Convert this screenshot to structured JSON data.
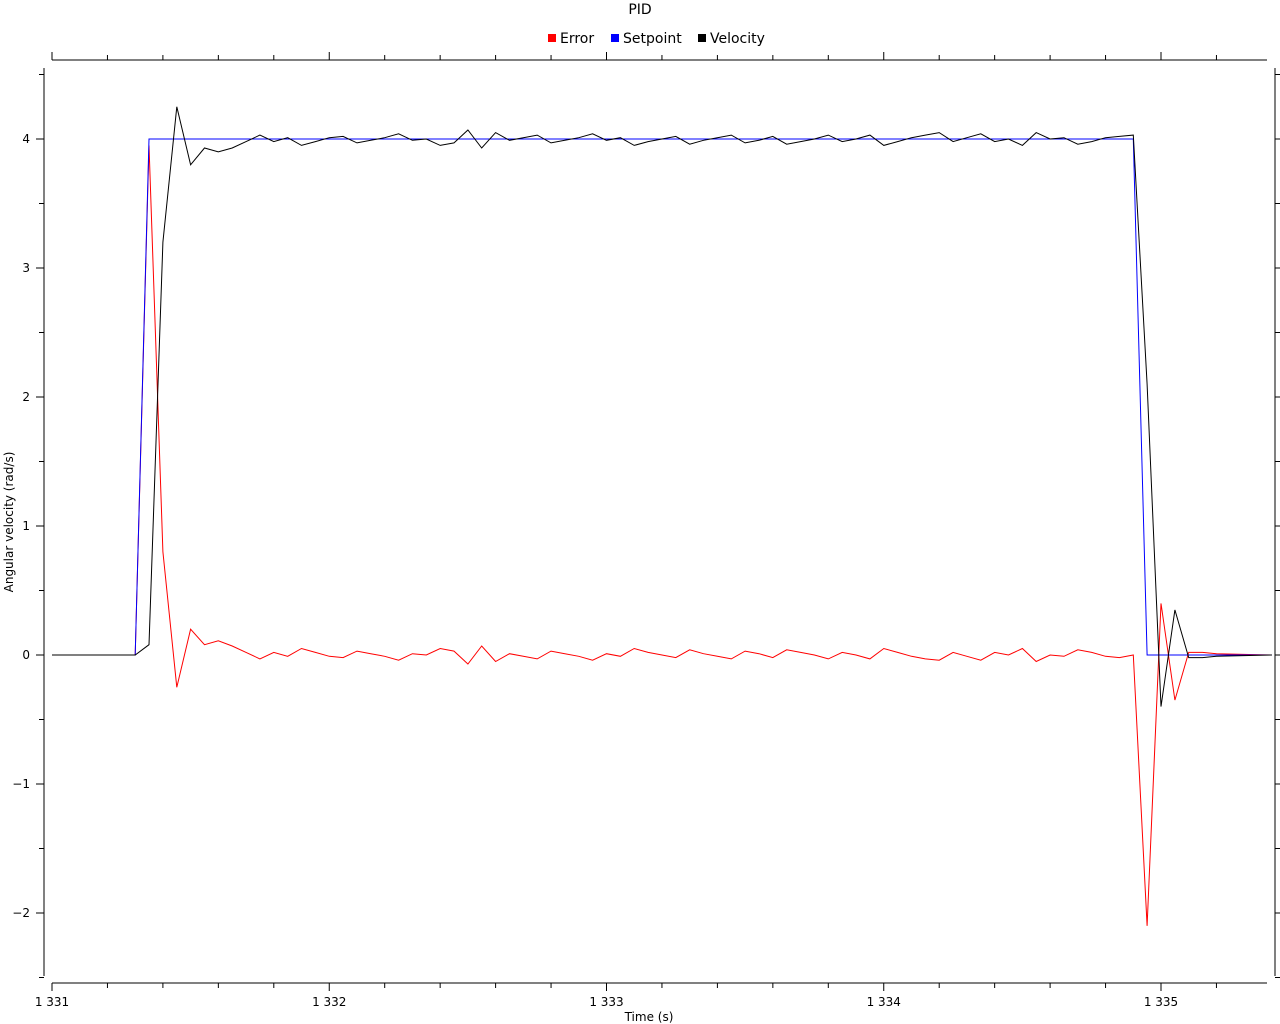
{
  "chart_data": {
    "type": "line",
    "title": "PID",
    "xlabel": "Time (s)",
    "ylabel": "Angular velocity (rad/s)",
    "xlim": [
      1331.0,
      1335.4
    ],
    "ylim": [
      -2.5,
      4.5
    ],
    "grid": false,
    "legend_position": "top-center",
    "x_ticks": [
      1331,
      1332,
      1333,
      1334,
      1335
    ],
    "x_tick_labels": [
      "1 331",
      "1 332",
      "1 333",
      "1 334",
      "1 335"
    ],
    "y_ticks": [
      -2,
      -1,
      0,
      1,
      2,
      3,
      4
    ],
    "y_tick_labels": [
      "−2",
      "−1",
      "0",
      "1",
      "2",
      "3",
      "4"
    ],
    "series": [
      {
        "name": "Error",
        "color": "#ff0000",
        "x": [
          1331.0,
          1331.3,
          1331.35,
          1331.4,
          1331.45,
          1331.5,
          1331.55,
          1331.6,
          1331.65,
          1331.7,
          1331.75,
          1331.8,
          1331.85,
          1331.9,
          1331.95,
          1332.0,
          1332.05,
          1332.1,
          1332.15,
          1332.2,
          1332.25,
          1332.3,
          1332.35,
          1332.4,
          1332.45,
          1332.5,
          1332.55,
          1332.6,
          1332.65,
          1332.7,
          1332.75,
          1332.8,
          1332.85,
          1332.9,
          1332.95,
          1333.0,
          1333.05,
          1333.1,
          1333.15,
          1333.2,
          1333.25,
          1333.3,
          1333.35,
          1333.4,
          1333.45,
          1333.5,
          1333.55,
          1333.6,
          1333.65,
          1333.7,
          1333.75,
          1333.8,
          1333.85,
          1333.9,
          1333.95,
          1334.0,
          1334.05,
          1334.1,
          1334.15,
          1334.2,
          1334.25,
          1334.3,
          1334.35,
          1334.4,
          1334.45,
          1334.5,
          1334.55,
          1334.6,
          1334.65,
          1334.7,
          1334.75,
          1334.8,
          1334.85,
          1334.9,
          1334.95,
          1335.0,
          1335.05,
          1335.1,
          1335.15,
          1335.2,
          1335.4
        ],
        "values": [
          0,
          0,
          3.95,
          0.8,
          -0.25,
          0.2,
          0.08,
          0.11,
          0.07,
          0.02,
          -0.03,
          0.02,
          -0.01,
          0.05,
          0.02,
          -0.01,
          -0.02,
          0.03,
          0.01,
          -0.01,
          -0.04,
          0.01,
          0.0,
          0.05,
          0.03,
          -0.07,
          0.07,
          -0.05,
          0.01,
          -0.01,
          -0.03,
          0.03,
          0.01,
          -0.01,
          -0.04,
          0.01,
          -0.01,
          0.05,
          0.02,
          0.0,
          -0.02,
          0.04,
          0.01,
          -0.01,
          -0.03,
          0.03,
          0.01,
          -0.02,
          0.04,
          0.02,
          0.0,
          -0.03,
          0.02,
          0.0,
          -0.03,
          0.05,
          0.02,
          -0.01,
          -0.03,
          -0.04,
          0.02,
          -0.01,
          -0.04,
          0.02,
          0.0,
          0.05,
          -0.05,
          0.0,
          -0.01,
          0.04,
          0.02,
          -0.01,
          -0.02,
          0.0,
          -2.1,
          0.4,
          -0.35,
          0.02,
          0.02,
          0.01,
          0.0
        ]
      },
      {
        "name": "Setpoint",
        "color": "#0000ff",
        "x": [
          1331.0,
          1331.3,
          1331.35,
          1334.9,
          1334.95,
          1335.4
        ],
        "values": [
          0,
          0,
          4,
          4,
          0,
          0
        ]
      },
      {
        "name": "Velocity",
        "color": "#000000",
        "x": [
          1331.0,
          1331.3,
          1331.35,
          1331.4,
          1331.45,
          1331.5,
          1331.55,
          1331.6,
          1331.65,
          1331.7,
          1331.75,
          1331.8,
          1331.85,
          1331.9,
          1331.95,
          1332.0,
          1332.05,
          1332.1,
          1332.15,
          1332.2,
          1332.25,
          1332.3,
          1332.35,
          1332.4,
          1332.45,
          1332.5,
          1332.55,
          1332.6,
          1332.65,
          1332.7,
          1332.75,
          1332.8,
          1332.85,
          1332.9,
          1332.95,
          1333.0,
          1333.05,
          1333.1,
          1333.15,
          1333.2,
          1333.25,
          1333.3,
          1333.35,
          1333.4,
          1333.45,
          1333.5,
          1333.55,
          1333.6,
          1333.65,
          1333.7,
          1333.75,
          1333.8,
          1333.85,
          1333.9,
          1333.95,
          1334.0,
          1334.05,
          1334.1,
          1334.15,
          1334.2,
          1334.25,
          1334.3,
          1334.35,
          1334.4,
          1334.45,
          1334.5,
          1334.55,
          1334.6,
          1334.65,
          1334.7,
          1334.75,
          1334.8,
          1334.85,
          1334.9,
          1334.95,
          1335.0,
          1335.05,
          1335.1,
          1335.15,
          1335.2,
          1335.4
        ],
        "values": [
          0,
          0,
          0.08,
          3.2,
          4.25,
          3.8,
          3.93,
          3.9,
          3.93,
          3.98,
          4.03,
          3.98,
          4.01,
          3.95,
          3.98,
          4.01,
          4.02,
          3.97,
          3.99,
          4.01,
          4.04,
          3.99,
          4.0,
          3.95,
          3.97,
          4.07,
          3.93,
          4.05,
          3.99,
          4.01,
          4.03,
          3.97,
          3.99,
          4.01,
          4.04,
          3.99,
          4.01,
          3.95,
          3.98,
          4.0,
          4.02,
          3.96,
          3.99,
          4.01,
          4.03,
          3.97,
          3.99,
          4.02,
          3.96,
          3.98,
          4.0,
          4.03,
          3.98,
          4.0,
          4.03,
          3.95,
          3.98,
          4.01,
          4.03,
          4.05,
          3.98,
          4.01,
          4.04,
          3.98,
          4.0,
          3.95,
          4.05,
          4.0,
          4.01,
          3.96,
          3.98,
          4.01,
          4.02,
          4.03,
          2.1,
          -0.4,
          0.35,
          -0.02,
          -0.02,
          -0.01,
          0.0
        ]
      }
    ]
  }
}
